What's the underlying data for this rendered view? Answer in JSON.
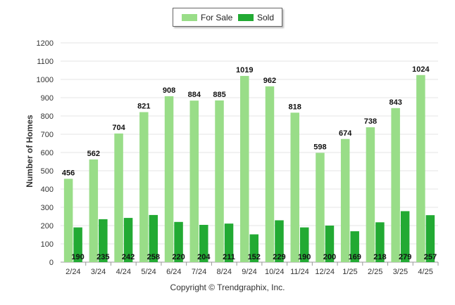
{
  "chart_data": {
    "type": "bar",
    "categories": [
      "2/24",
      "3/24",
      "4/24",
      "5/24",
      "6/24",
      "7/24",
      "8/24",
      "9/24",
      "10/24",
      "11/24",
      "12/24",
      "1/25",
      "2/25",
      "3/25",
      "4/25"
    ],
    "series": [
      {
        "name": "For Sale",
        "color": "#99dd88",
        "values": [
          456,
          562,
          704,
          821,
          908,
          884,
          885,
          1019,
          962,
          818,
          598,
          674,
          738,
          843,
          1024
        ]
      },
      {
        "name": "Sold",
        "color": "#22aa33",
        "values": [
          190,
          235,
          242,
          258,
          220,
          204,
          211,
          152,
          229,
          190,
          200,
          169,
          218,
          279,
          257
        ]
      }
    ],
    "ylabel": "Number of Homes",
    "ylim": [
      0,
      1200
    ],
    "yticks": [
      0,
      100,
      200,
      300,
      400,
      500,
      600,
      700,
      800,
      900,
      1000,
      1100,
      1200
    ],
    "grid": true,
    "legend": "top-center"
  },
  "footer": {
    "copyright": "Copyright © Trendgraphix, Inc."
  }
}
